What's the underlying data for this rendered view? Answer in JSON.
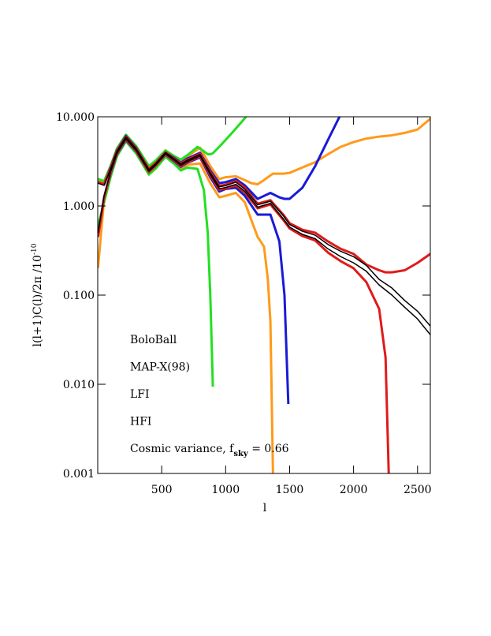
{
  "chart_data": {
    "type": "line",
    "xlabel": "l",
    "ylabel_parts": [
      "l(l+1)C(l)/2π  /10",
      "-10"
    ],
    "log_y": true,
    "xlim": [
      0,
      2600
    ],
    "ylim": [
      0.001,
      10
    ],
    "xticks": [
      500,
      1000,
      1500,
      2000,
      2500
    ],
    "yticks": [
      {
        "value": 0.001,
        "label": "0.001"
      },
      {
        "value": 0.01,
        "label": "0.010"
      },
      {
        "value": 0.1,
        "label": "0.100"
      },
      {
        "value": 1,
        "label": "1.000"
      },
      {
        "value": 10,
        "label": "10.000"
      }
    ],
    "series": [
      {
        "name": "BoloBall",
        "color": "#ff9a1a",
        "x": [
          2,
          50,
          100,
          150,
          220,
          300,
          400,
          450,
          530,
          600,
          650,
          700,
          800,
          880,
          950,
          1000,
          1080,
          1150,
          1200,
          1250,
          1300,
          1330,
          1350,
          1370,
          1450,
          1500,
          1600,
          1700,
          1800,
          1900,
          2000,
          2100,
          2200,
          2300,
          2400,
          2500,
          2600
        ],
        "upper": [
          1.9,
          1.8,
          2.75,
          4.3,
          6.2,
          4.6,
          2.7,
          3.1,
          4.1,
          3.55,
          3.2,
          3.6,
          4.5,
          2.8,
          2.0,
          2.1,
          2.15,
          1.95,
          1.8,
          1.75,
          1.95,
          2.1,
          2.2,
          2.3,
          2.3,
          2.35,
          2.7,
          3.1,
          3.8,
          4.6,
          5.2,
          5.7,
          6.0,
          6.2,
          6.6,
          7.2,
          9.5
        ],
        "lower": [
          0.2,
          1.2,
          2.2,
          3.7,
          5.4,
          4.0,
          2.3,
          2.7,
          3.65,
          3.05,
          2.65,
          2.9,
          3.0,
          1.8,
          1.25,
          1.3,
          1.4,
          1.1,
          0.7,
          0.45,
          0.35,
          0.15,
          0.05,
          0.001,
          null,
          null,
          null,
          null,
          null,
          null,
          null,
          null,
          null,
          null,
          null,
          null,
          null
        ]
      },
      {
        "name": "MAP-X(98)",
        "color": "#22e022",
        "x": [
          2,
          50,
          100,
          150,
          220,
          300,
          400,
          450,
          530,
          600,
          650,
          700,
          780,
          830,
          860,
          880,
          900,
          950,
          1050,
          1160
        ],
        "upper": [
          2.0,
          1.9,
          2.8,
          4.4,
          6.3,
          4.7,
          2.8,
          3.2,
          4.2,
          3.6,
          3.3,
          3.7,
          4.6,
          4.1,
          3.8,
          3.8,
          3.9,
          4.6,
          6.6,
          10
        ],
        "lower": [
          0.6,
          1.1,
          2.1,
          3.6,
          5.3,
          3.9,
          2.25,
          2.6,
          3.55,
          2.95,
          2.5,
          2.7,
          2.6,
          1.5,
          0.5,
          0.1,
          0.0094,
          null,
          null,
          null
        ]
      },
      {
        "name": "LFI",
        "color": "#1a1ad6",
        "x": [
          2,
          50,
          100,
          150,
          220,
          300,
          400,
          450,
          530,
          600,
          650,
          700,
          800,
          880,
          950,
          1000,
          1080,
          1150,
          1250,
          1350,
          1420,
          1460,
          1490,
          1500,
          1600,
          1700,
          1800,
          1890
        ],
        "upper": [
          1.85,
          1.75,
          2.7,
          4.2,
          6.1,
          4.5,
          2.6,
          3.0,
          4.0,
          3.45,
          3.05,
          3.4,
          3.95,
          2.5,
          1.8,
          1.85,
          2.0,
          1.7,
          1.2,
          1.4,
          1.25,
          1.2,
          1.2,
          1.2,
          1.6,
          2.8,
          5.5,
          10
        ],
        "lower": [
          0.45,
          1.25,
          2.3,
          3.8,
          5.5,
          4.1,
          2.4,
          2.8,
          3.75,
          3.15,
          2.75,
          3.05,
          3.5,
          2.1,
          1.45,
          1.55,
          1.6,
          1.3,
          0.8,
          0.8,
          0.4,
          0.1,
          0.006,
          null,
          null,
          null,
          null,
          null
        ]
      },
      {
        "name": "HFI",
        "color": "#e01a1a",
        "x": [
          2,
          50,
          100,
          150,
          220,
          300,
          400,
          450,
          530,
          600,
          650,
          700,
          800,
          880,
          950,
          1000,
          1080,
          1150,
          1250,
          1350,
          1450,
          1500,
          1600,
          1700,
          1800,
          1900,
          2000,
          2100,
          2200,
          2250,
          2275,
          2300,
          2400,
          2500,
          2600
        ],
        "upper": [
          1.85,
          1.75,
          2.65,
          4.15,
          6.0,
          4.45,
          2.6,
          3.0,
          4.0,
          3.4,
          3.0,
          3.3,
          3.85,
          2.4,
          1.68,
          1.73,
          1.9,
          1.6,
          1.06,
          1.16,
          0.8,
          0.64,
          0.54,
          0.5,
          0.4,
          0.33,
          0.29,
          0.22,
          0.19,
          0.18,
          0.18,
          0.18,
          0.19,
          0.23,
          0.29
        ],
        "lower": [
          0.45,
          1.25,
          2.35,
          3.85,
          5.6,
          4.15,
          2.4,
          2.8,
          3.78,
          3.2,
          2.8,
          3.1,
          3.58,
          2.2,
          1.52,
          1.57,
          1.7,
          1.42,
          0.94,
          1.04,
          0.7,
          0.56,
          0.46,
          0.41,
          0.3,
          0.24,
          0.2,
          0.14,
          0.07,
          0.02,
          0.001,
          null,
          null,
          null,
          null
        ]
      },
      {
        "name_parts": [
          "Cosmic variance, f",
          "sky",
          " = 0.66"
        ],
        "color": "#000000",
        "x": [
          2,
          50,
          100,
          150,
          220,
          300,
          400,
          450,
          530,
          600,
          650,
          700,
          800,
          880,
          950,
          1000,
          1080,
          1150,
          1250,
          1350,
          1450,
          1500,
          1600,
          1700,
          1800,
          1900,
          2000,
          2100,
          2200,
          2300,
          2400,
          2500,
          2600
        ],
        "upper": [
          1.8,
          1.7,
          2.6,
          4.1,
          5.95,
          4.4,
          2.55,
          2.95,
          3.97,
          3.36,
          2.95,
          3.26,
          3.77,
          2.35,
          1.64,
          1.69,
          1.85,
          1.54,
          1.03,
          1.13,
          0.78,
          0.62,
          0.52,
          0.47,
          0.37,
          0.31,
          0.27,
          0.215,
          0.15,
          0.12,
          0.087,
          0.066,
          0.045
        ],
        "lower": [
          0.5,
          1.3,
          2.4,
          3.9,
          5.65,
          4.2,
          2.45,
          2.85,
          3.83,
          3.24,
          2.85,
          3.14,
          3.63,
          2.25,
          1.56,
          1.61,
          1.75,
          1.46,
          0.97,
          1.07,
          0.72,
          0.58,
          0.48,
          0.43,
          0.33,
          0.27,
          0.23,
          0.185,
          0.13,
          0.1,
          0.073,
          0.054,
          0.036
        ]
      }
    ]
  }
}
